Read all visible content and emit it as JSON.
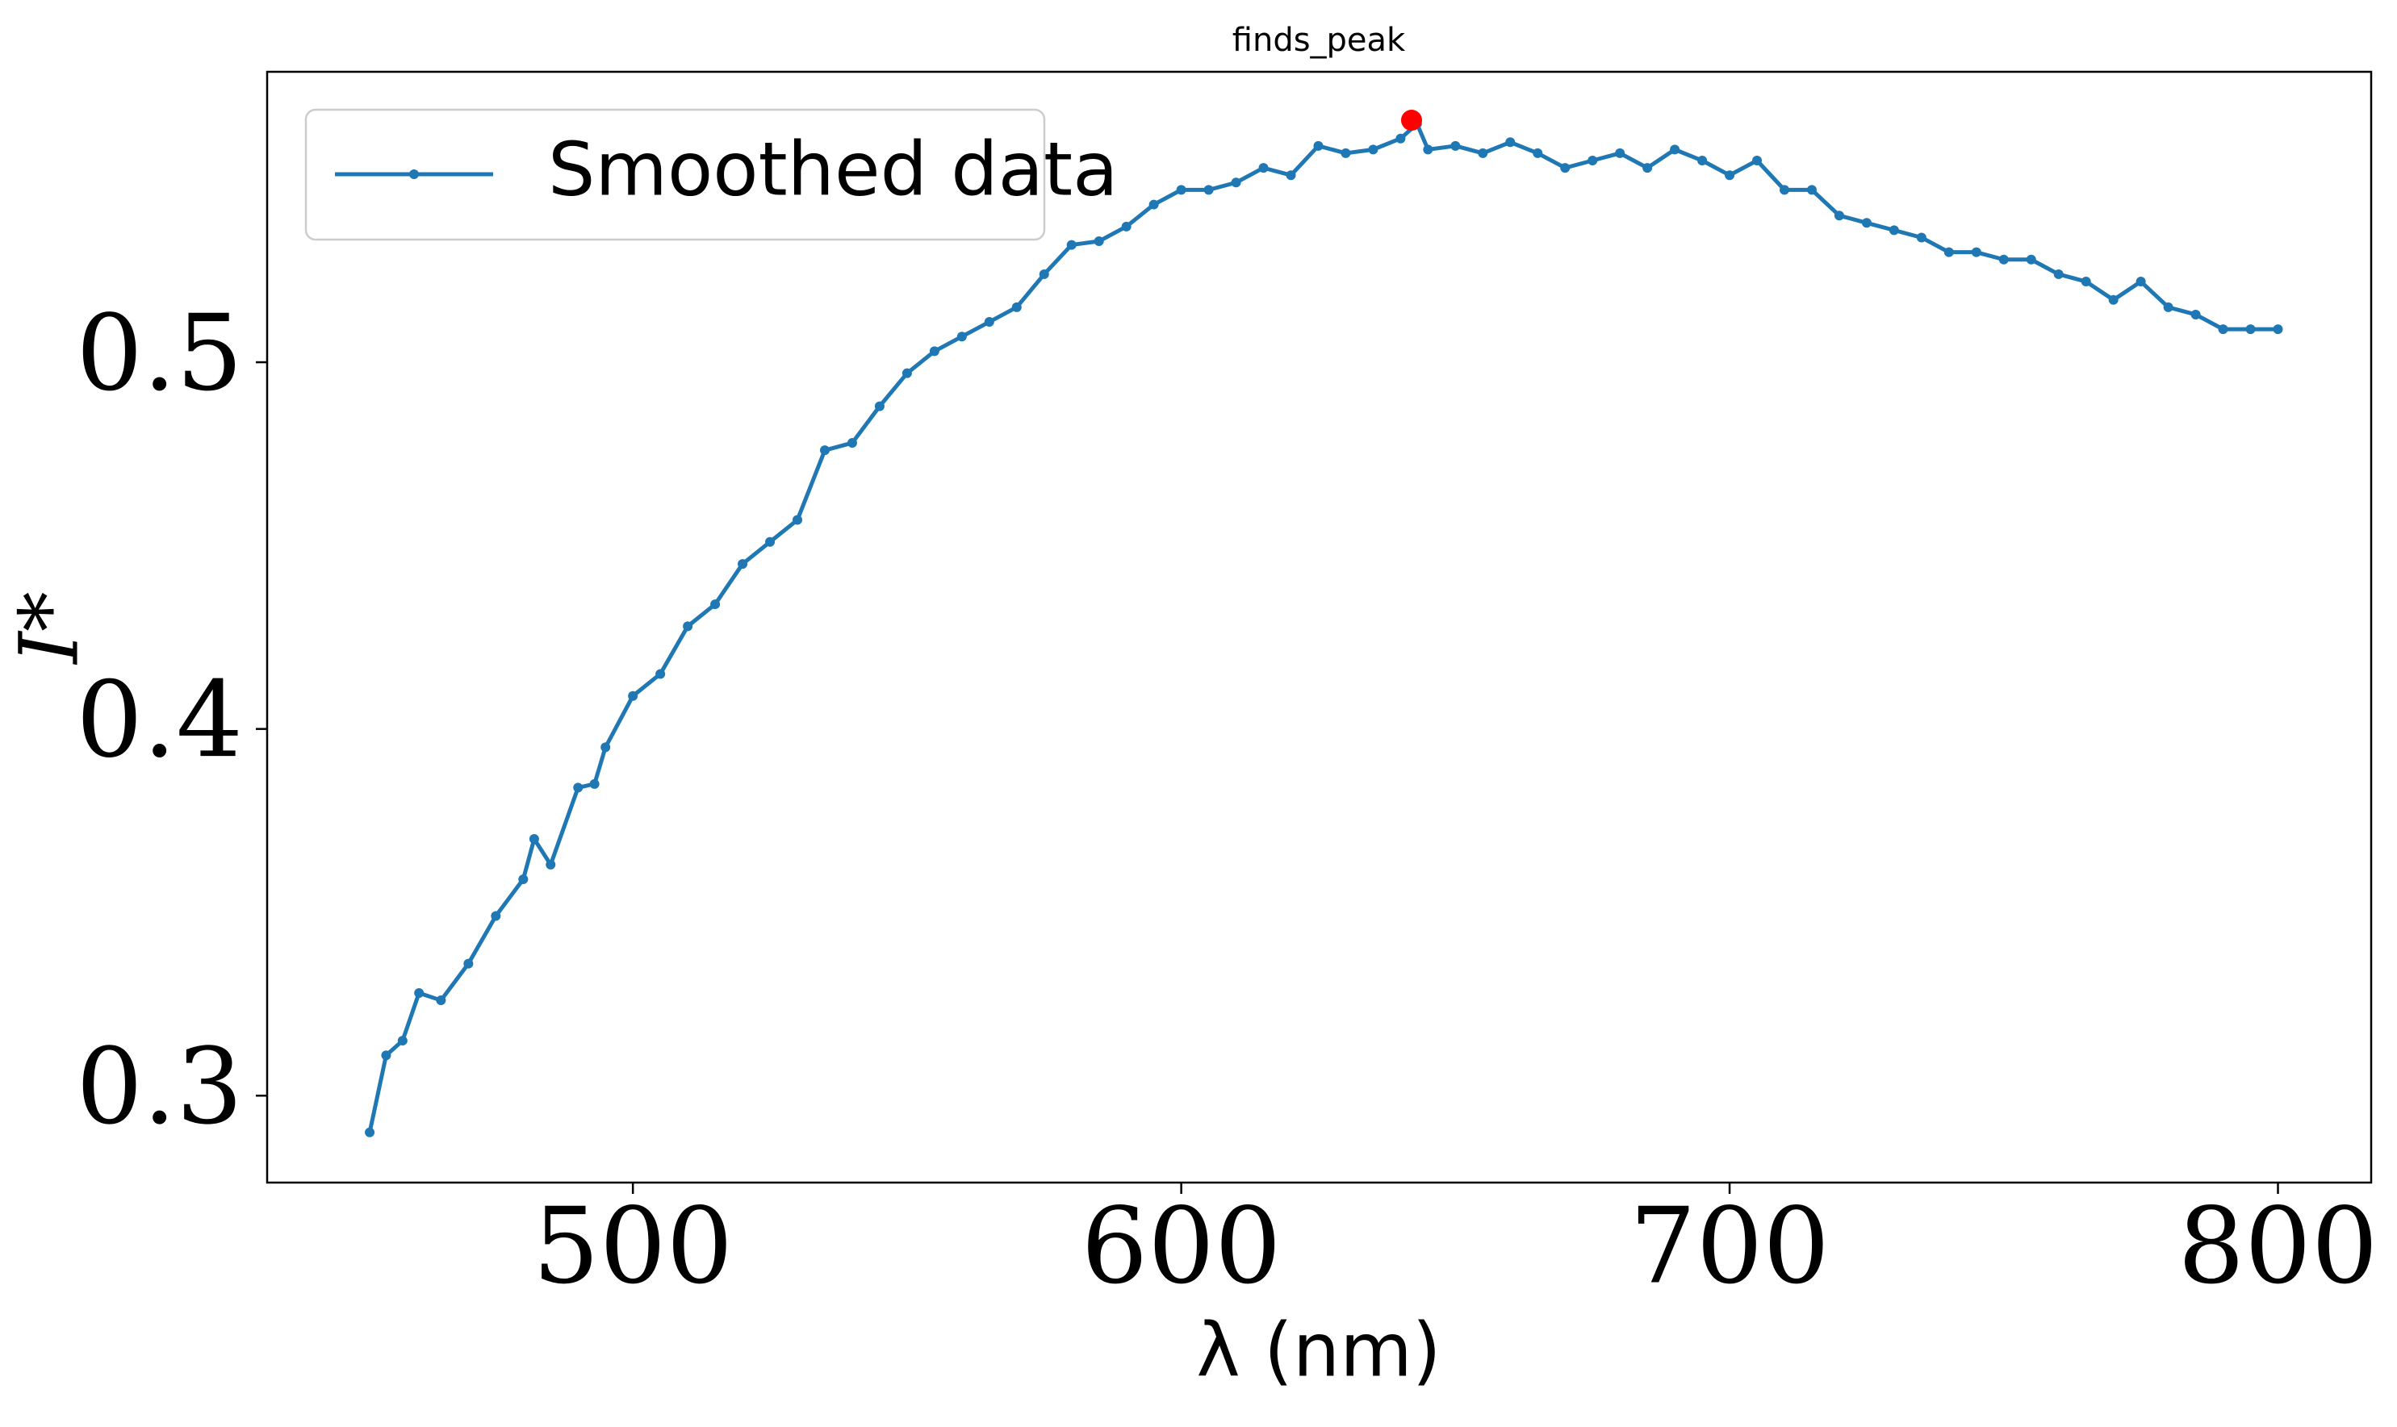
{
  "chart_data": {
    "type": "line",
    "title": "finds_peak",
    "xlabel": "λ (nm)",
    "ylabel": "I*",
    "x": [
      452,
      455,
      458,
      461,
      465,
      470,
      475,
      480,
      482,
      485,
      490,
      493,
      495,
      500,
      505,
      510,
      515,
      520,
      525,
      530,
      535,
      540,
      545,
      550,
      555,
      560,
      565,
      570,
      575,
      580,
      585,
      590,
      595,
      600,
      605,
      610,
      615,
      620,
      625,
      630,
      635,
      640,
      643,
      645,
      650,
      655,
      660,
      665,
      670,
      675,
      680,
      685,
      690,
      695,
      700,
      705,
      710,
      715,
      720,
      725,
      730,
      735,
      740,
      745,
      750,
      755,
      760,
      765,
      770,
      775,
      780,
      785,
      790,
      795,
      800
    ],
    "series": [
      {
        "name": "Smoothed data",
        "color": "#1f77b4",
        "values": [
          0.29,
          0.311,
          0.315,
          0.328,
          0.326,
          0.336,
          0.349,
          0.359,
          0.37,
          0.363,
          0.384,
          0.385,
          0.395,
          0.409,
          0.415,
          0.428,
          0.434,
          0.445,
          0.451,
          0.457,
          0.476,
          0.478,
          0.488,
          0.497,
          0.503,
          0.507,
          0.511,
          0.515,
          0.524,
          0.532,
          0.533,
          0.537,
          0.543,
          0.547,
          0.547,
          0.549,
          0.553,
          0.551,
          0.559,
          0.557,
          0.558,
          0.561,
          0.565,
          0.558,
          0.559,
          0.557,
          0.56,
          0.557,
          0.553,
          0.555,
          0.557,
          0.553,
          0.558,
          0.555,
          0.551,
          0.555,
          0.547,
          0.547,
          0.54,
          0.538,
          0.536,
          0.534,
          0.53,
          0.53,
          0.528,
          0.528,
          0.524,
          0.522,
          0.517,
          0.522,
          0.515,
          0.513,
          0.509,
          0.509,
          0.509
        ]
      }
    ],
    "peak": {
      "x": 642,
      "y": 0.566,
      "color": "#ff0000"
    },
    "xlim": [
      433.3,
      817.0
    ],
    "ylim": [
      0.2763,
      0.5792
    ],
    "xticks": [
      500,
      600,
      700,
      800
    ],
    "yticks": [
      0.3,
      0.4,
      0.5
    ],
    "legend": "upper left"
  }
}
